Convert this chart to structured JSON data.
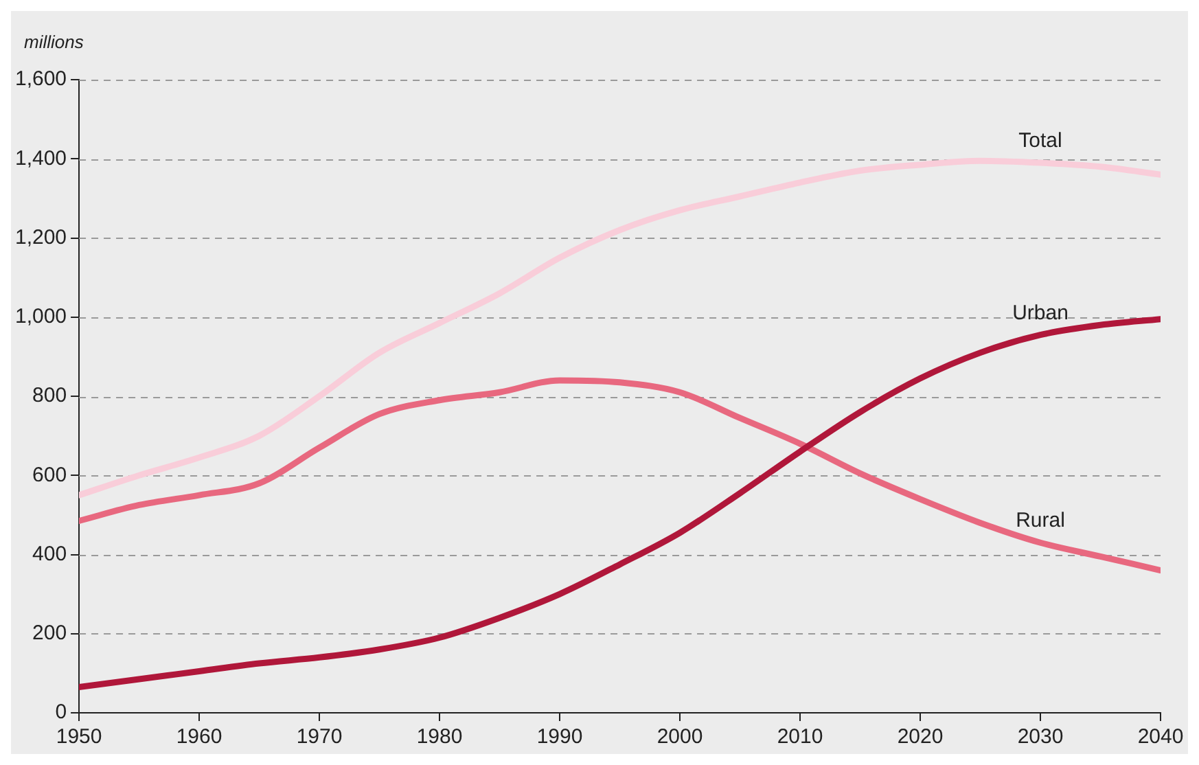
{
  "chart_data": {
    "type": "line",
    "ylabel": "millions",
    "x": [
      1950,
      1955,
      1960,
      1965,
      1970,
      1975,
      1980,
      1985,
      1990,
      1995,
      2000,
      2005,
      2010,
      2015,
      2020,
      2025,
      2030,
      2035,
      2040
    ],
    "series": [
      {
        "name": "Total",
        "color": "#f9cdd9",
        "values": [
          550,
          600,
          645,
          700,
          800,
          910,
          985,
          1060,
          1150,
          1220,
          1270,
          1305,
          1340,
          1370,
          1385,
          1395,
          1390,
          1380,
          1360
        ]
      },
      {
        "name": "Urban",
        "color": "#b0173a",
        "values": [
          65,
          85,
          105,
          125,
          140,
          160,
          190,
          240,
          300,
          375,
          455,
          555,
          660,
          760,
          845,
          910,
          955,
          980,
          995
        ]
      },
      {
        "name": "Rural",
        "color": "#e8687f",
        "values": [
          485,
          525,
          550,
          580,
          670,
          755,
          790,
          810,
          840,
          835,
          810,
          745,
          680,
          605,
          540,
          480,
          430,
          395,
          360
        ]
      }
    ],
    "xlim": [
      1950,
      2040
    ],
    "xticks": [
      1950,
      1960,
      1970,
      1980,
      1990,
      2000,
      2010,
      2020,
      2030,
      2040
    ],
    "ylim": [
      0,
      1600
    ],
    "yticks": [
      0,
      200,
      400,
      600,
      800,
      {
        "value": 1000,
        "label": "1,000"
      },
      {
        "value": 1200,
        "label": "1,200"
      },
      {
        "value": 1400,
        "label": "1,400"
      },
      {
        "value": 1600,
        "label": "1,600"
      }
    ],
    "grid": "y",
    "legend": false,
    "marker": "none",
    "line_style": "solid"
  }
}
